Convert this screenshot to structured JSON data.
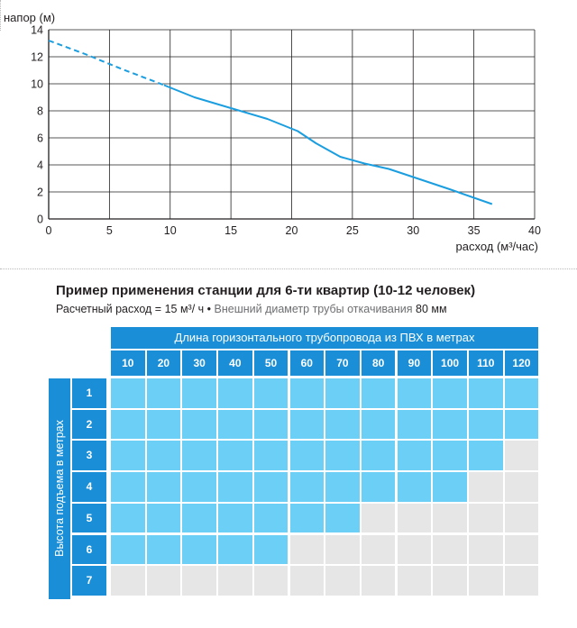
{
  "chart_data": {
    "type": "line",
    "ylabel": "напор (м)",
    "xlabel": "расход (м³/час)",
    "xlim": [
      0,
      40
    ],
    "ylim": [
      0,
      14
    ],
    "x_ticks": [
      0,
      5,
      10,
      15,
      20,
      25,
      30,
      35,
      40
    ],
    "y_ticks": [
      0,
      2,
      4,
      6,
      8,
      10,
      12,
      14
    ],
    "grid": true,
    "color": "#1a9ee0",
    "series": [
      {
        "dashed_segment": [
          [
            0,
            13.2
          ],
          [
            3,
            12.2
          ],
          [
            6,
            11.1
          ],
          [
            9.5,
            9.9
          ]
        ],
        "solid_segment": [
          [
            9.5,
            9.9
          ],
          [
            12,
            9.0
          ],
          [
            15,
            8.2
          ],
          [
            18,
            7.4
          ],
          [
            20.5,
            6.5
          ],
          [
            22,
            5.6
          ],
          [
            24,
            4.6
          ],
          [
            26,
            4.1
          ],
          [
            28,
            3.7
          ],
          [
            30,
            3.1
          ],
          [
            33,
            2.2
          ],
          [
            36.5,
            1.1
          ]
        ]
      }
    ]
  },
  "table": {
    "title": "Пример применения станции для 6-ти квартир (10-12 человек)",
    "sub_main": "Расчетный расход = 15 м³/ ч •",
    "sub_dim": " Внешний диаметр трубы откачивания ",
    "sub_end": "80 мм",
    "header": "Длина горизонтального трубопровода из ПВХ в метрах",
    "side_label": "Высота подъема в метрах",
    "columns": [
      "10",
      "20",
      "30",
      "40",
      "50",
      "60",
      "70",
      "80",
      "90",
      "100",
      "110",
      "120"
    ],
    "rows": [
      "1",
      "2",
      "3",
      "4",
      "5",
      "6",
      "7"
    ],
    "suitable_counts": [
      12,
      12,
      11,
      10,
      7,
      5,
      0
    ],
    "colors": {
      "header": "#1a8fd8",
      "suitable": "#6ccff6",
      "unsuitable": "#e6e6e7"
    }
  }
}
